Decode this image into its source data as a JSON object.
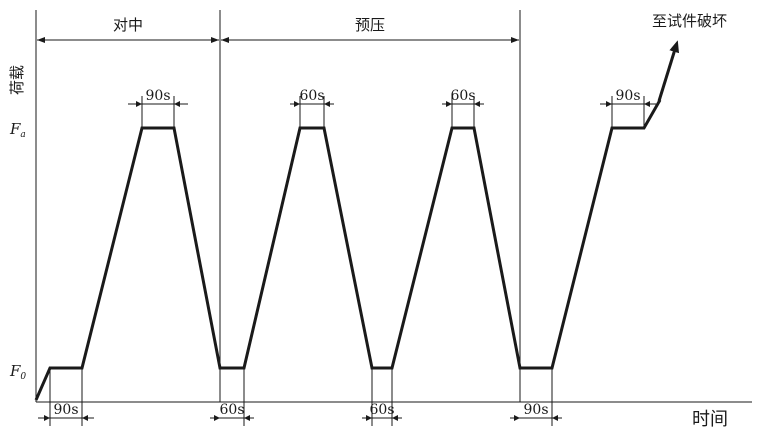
{
  "labels": {
    "centering": "对中",
    "preload": "预压",
    "to_failure": "至试件破坏",
    "y_axis": "荷载",
    "x_axis": "时间",
    "load_upper": "F",
    "load_upper_sub": "a",
    "load_lower": "F",
    "load_lower_sub": "0"
  },
  "durations": {
    "top": [
      "90s",
      "60s",
      "60s",
      "90s"
    ],
    "bottom": [
      "90s",
      "60s",
      "60s",
      "90s"
    ]
  }
}
